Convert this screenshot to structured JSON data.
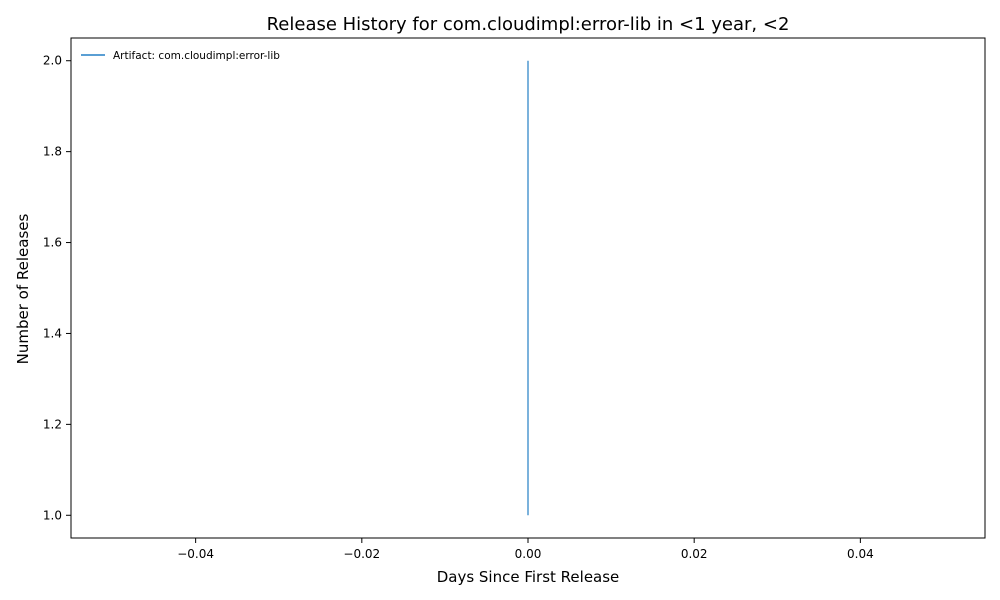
{
  "chart_data": {
    "type": "line",
    "title": "Release History for com.cloudimpl:error-lib in <1 year, <2",
    "xlabel": "Days Since First Release",
    "ylabel": "Number of Releases",
    "xlim": [
      -0.055,
      0.055
    ],
    "ylim": [
      0.95,
      2.05
    ],
    "xticks": [
      -0.04,
      -0.02,
      0.0,
      0.02,
      0.04
    ],
    "xtick_labels": [
      "−0.04",
      "−0.02",
      "0.00",
      "0.02",
      "0.04"
    ],
    "yticks": [
      1.0,
      1.2,
      1.4,
      1.6,
      1.8,
      2.0
    ],
    "ytick_labels": [
      "1.0",
      "1.2",
      "1.4",
      "1.6",
      "1.8",
      "2.0"
    ],
    "grid": false,
    "legend_position": "top-left",
    "series": [
      {
        "name": "Artifact: com.cloudimpl:error-lib",
        "color": "#5a9fd4",
        "x": [
          0,
          0
        ],
        "y": [
          1,
          2
        ]
      }
    ]
  }
}
